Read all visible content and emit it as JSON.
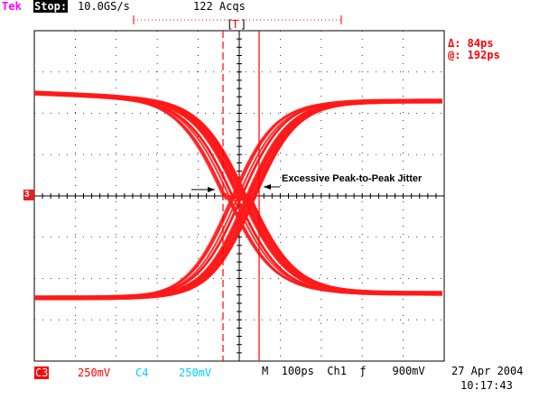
{
  "header": {
    "brand": "Tek",
    "state": "Stop:",
    "sample_rate": "10.0GS/s",
    "acquisitions": "122 Acqs",
    "trigger_marker": "T"
  },
  "measurements": {
    "delta": "Δ: 84ps",
    "at": "@: 192ps"
  },
  "channel_marker": "3",
  "annotation": "Excessive Peak-to-Peak Jitter",
  "footer": {
    "ch3_label": "C3",
    "ch3_scale": "250mV",
    "ch4_label": "C4",
    "ch4_scale": "250mV",
    "timebase": "M  100ps  Ch1  ƒ    900mV",
    "date": "27 Apr 2004",
    "time": "10:17:43"
  },
  "colors": {
    "trace": "#ff1a1a",
    "grid": "#000000",
    "cursor": "#ff0000",
    "ch4": "#00d0ff"
  }
}
